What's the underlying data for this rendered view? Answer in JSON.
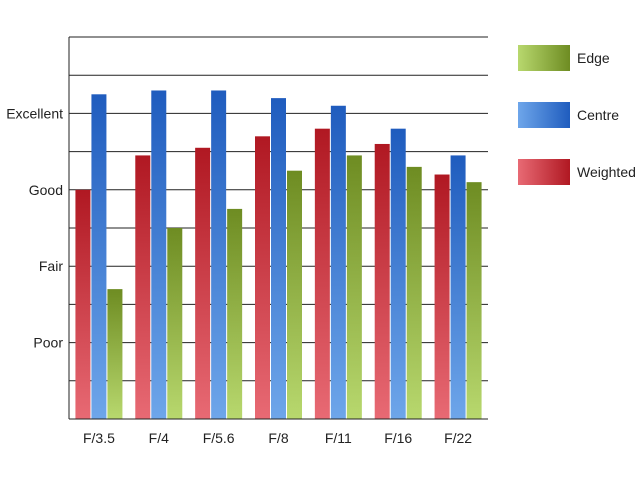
{
  "chart_data": {
    "type": "bar",
    "title": "",
    "xlabel": "",
    "ylabel": "",
    "categories": [
      "F/3.5",
      "F/4",
      "F/5.6",
      "F/8",
      "F/11",
      "F/16",
      "F/22"
    ],
    "ylim": [
      0,
      10
    ],
    "yticks": [
      {
        "value": 2,
        "label": "Poor"
      },
      {
        "value": 4,
        "label": "Fair"
      },
      {
        "value": 6,
        "label": "Good"
      },
      {
        "value": 8,
        "label": "Excellent"
      }
    ],
    "grid": true,
    "legend_position": "right",
    "series": [
      {
        "name": "Weighted",
        "values": [
          6.0,
          6.9,
          7.1,
          7.4,
          7.6,
          7.2,
          6.4
        ],
        "colors": {
          "dark": "#b01822",
          "light": "#e86a74"
        }
      },
      {
        "name": "Centre",
        "values": [
          8.5,
          8.6,
          8.6,
          8.4,
          8.2,
          7.6,
          6.9
        ],
        "colors": {
          "dark": "#1f5cbe",
          "light": "#6ea6ea"
        }
      },
      {
        "name": "Edge",
        "values": [
          3.4,
          5.0,
          5.5,
          6.5,
          6.9,
          6.6,
          6.2
        ],
        "colors": {
          "dark": "#6e8c22",
          "light": "#b8d86e"
        }
      }
    ],
    "legend_order": [
      "Edge",
      "Centre",
      "Weighted"
    ]
  }
}
